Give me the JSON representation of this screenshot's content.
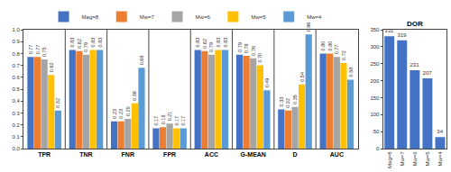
{
  "chart_data": [
    {
      "type": "bar",
      "categories": [
        "TPR",
        "TNR",
        "FNR",
        "FPR",
        "ACC",
        "G-MEAN",
        "D",
        "AUC"
      ],
      "series": [
        {
          "name": "Mag=8",
          "color": "#4472c4",
          "values": [
            0.77,
            0.83,
            0.23,
            0.17,
            0.83,
            0.79,
            0.33,
            0.8
          ],
          "value_labels": [
            "0.77",
            "0.83",
            "0.23",
            "0.17",
            "0.83",
            "0.79",
            "0.33",
            "0.80"
          ]
        },
        {
          "name": "Mw=7",
          "color": "#ed7d31",
          "values": [
            0.77,
            0.82,
            0.23,
            0.18,
            0.82,
            0.78,
            0.32,
            0.8
          ],
          "value_labels": [
            "0.77",
            "0.82",
            "0.23",
            "0.18",
            "0.82",
            "0.78",
            "0.32",
            "0.80"
          ]
        },
        {
          "name": "Mw=6",
          "color": "#a5a5a5",
          "values": [
            0.75,
            0.79,
            0.25,
            0.21,
            0.79,
            0.76,
            0.35,
            0.77
          ],
          "value_labels": [
            "0.75",
            "0.79",
            "0.25",
            "0.21",
            "0.79",
            "0.76",
            "0.35",
            "0.77"
          ]
        },
        {
          "name": "Mw=5",
          "color": "#ffc000",
          "values": [
            0.62,
            0.83,
            0.38,
            0.17,
            0.83,
            0.7,
            0.54,
            0.72
          ],
          "value_labels": [
            "0.62",
            "0.83",
            "0.38",
            "0.17",
            "0.83",
            "0.70",
            "0.54",
            "0.72"
          ]
        },
        {
          "name": "Mw=4",
          "color": "#5b9bd5",
          "values": [
            0.32,
            0.83,
            0.68,
            0.17,
            0.83,
            0.49,
            0.96,
            0.58
          ],
          "value_labels": [
            "0.32",
            "0.83",
            "0.68",
            "0.17",
            "0.83",
            "0.49",
            "0.96",
            "0.58"
          ]
        }
      ],
      "ylim": [
        0,
        1
      ],
      "yticks": [
        {
          "value": 0,
          "label": "0.0"
        },
        0.1,
        0.2,
        0.3,
        0.4,
        0.5,
        0.6,
        0.7,
        0.8,
        0.9,
        {
          "value": 1,
          "label": "1.0"
        }
      ],
      "grid": false,
      "legend": "top",
      "data_labels": true
    },
    {
      "type": "bar",
      "title": "DOR",
      "categories": [
        "Mag=8",
        "Mw=7",
        "Mw=6",
        "Mw=5",
        "Mw=4"
      ],
      "values": [
        331,
        319,
        231,
        207,
        34
      ],
      "color": "#4472c4",
      "ylim": [
        0,
        350
      ],
      "yticks": [
        0,
        50,
        100,
        150,
        200,
        250,
        300,
        350
      ],
      "grid": false,
      "data_labels": true
    }
  ]
}
